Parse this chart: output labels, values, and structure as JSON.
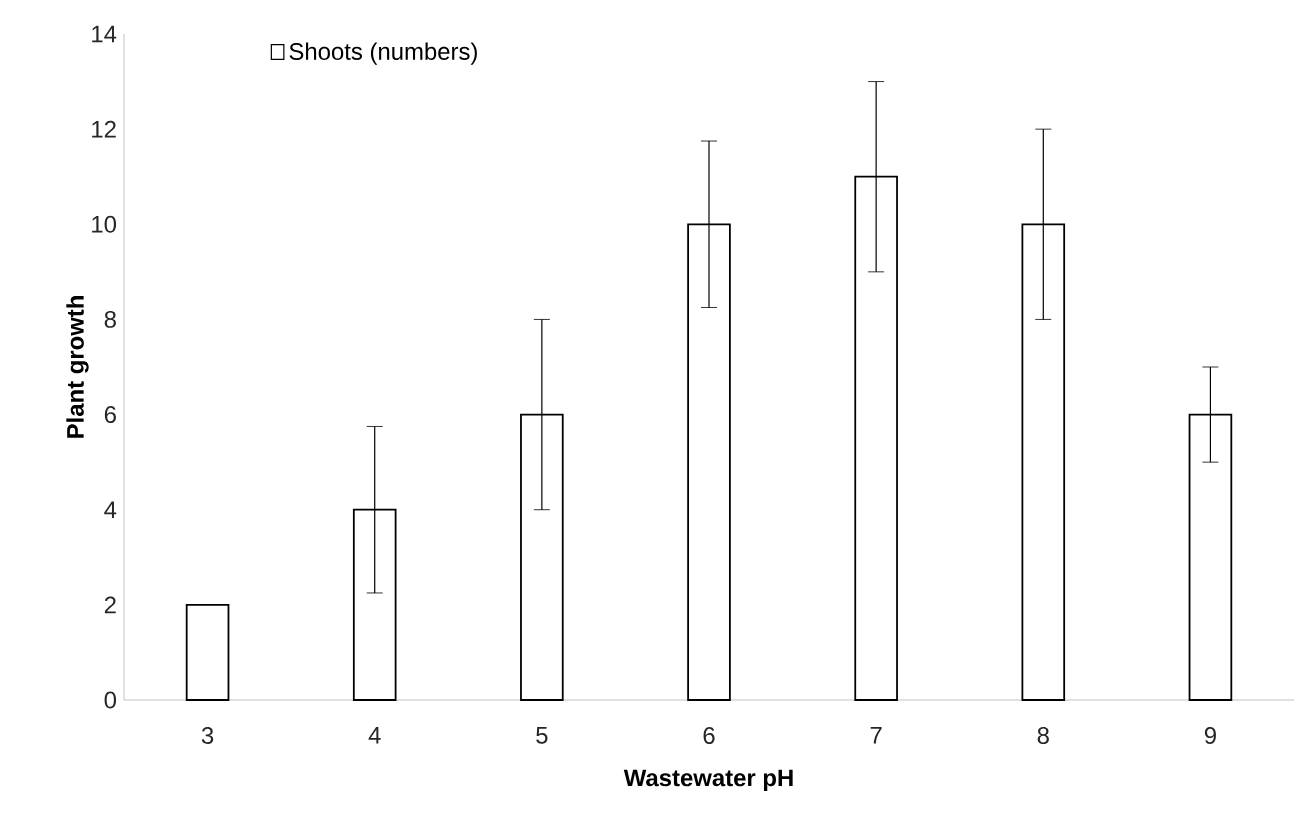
{
  "chart_data": {
    "type": "bar",
    "xlabel": "Wastewater pH",
    "ylabel": "Plant growth",
    "categories": [
      "3",
      "4",
      "5",
      "6",
      "7",
      "8",
      "9"
    ],
    "series": [
      {
        "name": "Shoots (numbers)",
        "color": "#ffffff",
        "values": [
          2,
          4,
          6,
          10,
          11,
          10,
          6
        ],
        "errors": [
          null,
          1.75,
          2,
          1.75,
          2,
          2,
          1
        ]
      }
    ],
    "ylim": [
      0,
      14
    ],
    "yticks": [
      0,
      2,
      4,
      6,
      8,
      10,
      12,
      14
    ],
    "grid": false,
    "legend": "top left"
  }
}
